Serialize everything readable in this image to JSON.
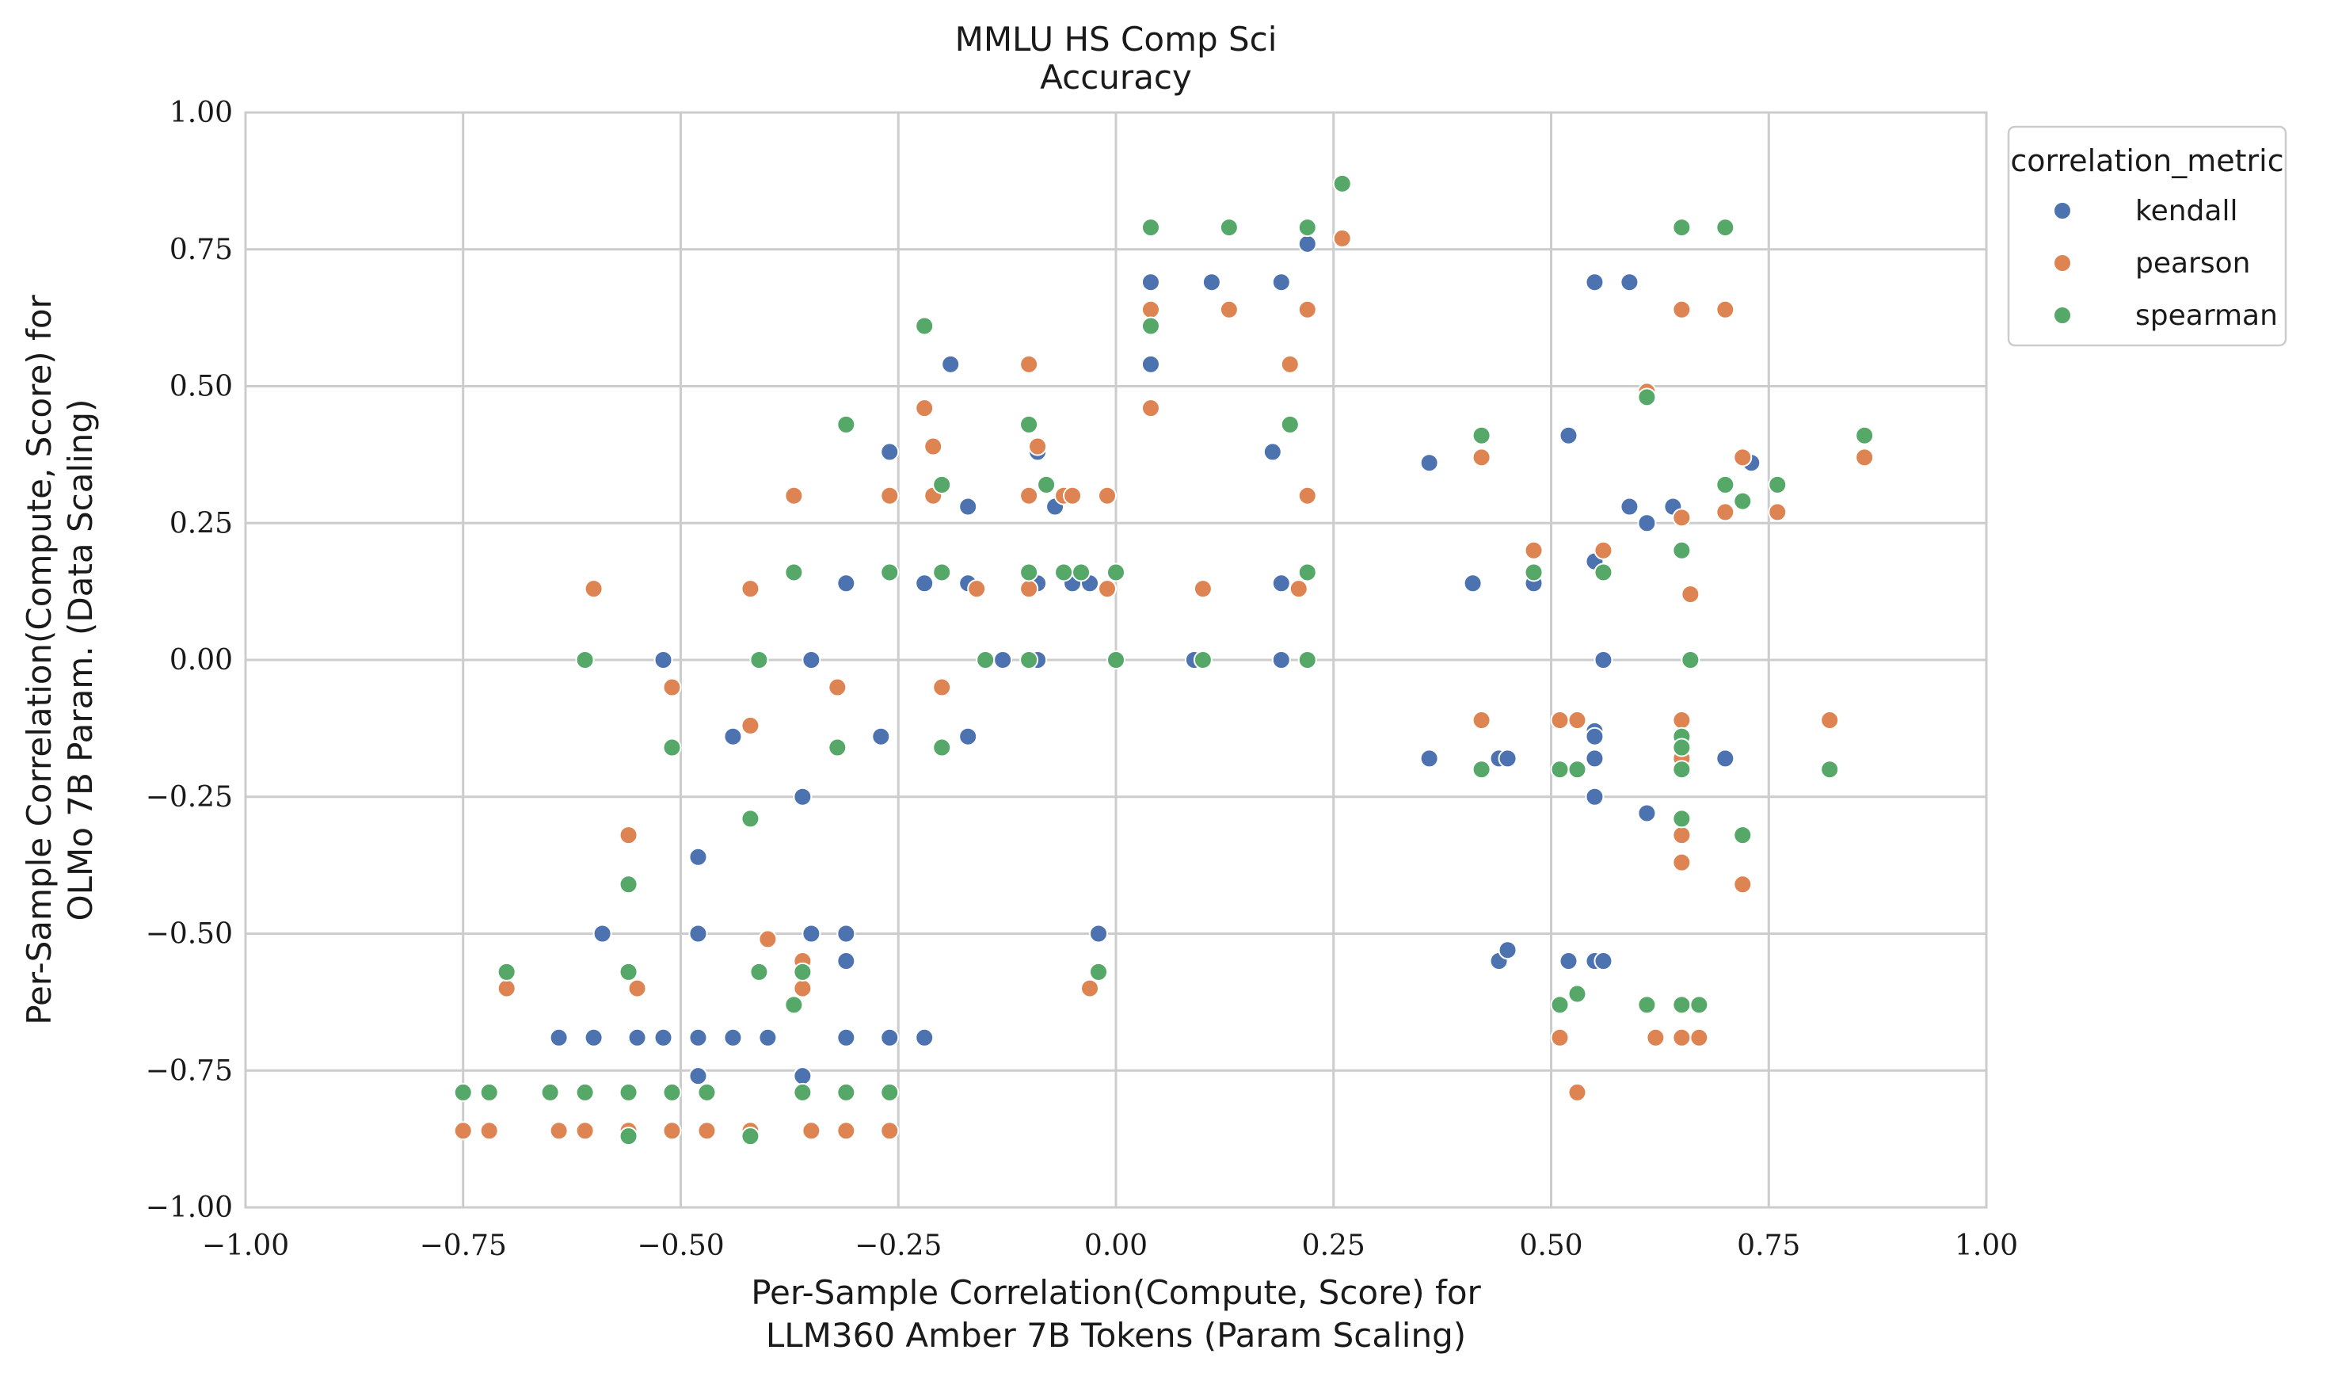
{
  "chart_data": {
    "type": "scatter",
    "title": "MMLU HS Comp Sci",
    "subtitle": "Accuracy",
    "xlabel": [
      "Per-Sample Correlation(Compute, Score) for",
      "LLM360 Amber 7B Tokens (Param Scaling)"
    ],
    "ylabel": [
      "Per-Sample Correlation(Compute, Score) for",
      "OLMo 7B Param. (Data Scaling)"
    ],
    "xlim": [
      -1.0,
      1.0
    ],
    "ylim": [
      -1.0,
      1.0
    ],
    "xticks": [
      "−1.00",
      "−0.75",
      "−0.50",
      "−0.25",
      "0.00",
      "0.25",
      "0.50",
      "0.75",
      "1.00"
    ],
    "yticks": [
      "−1.00",
      "−0.75",
      "−0.50",
      "−0.25",
      "0.00",
      "0.25",
      "0.50",
      "0.75",
      "1.00"
    ],
    "xtick_values": [
      -1.0,
      -0.75,
      -0.5,
      -0.25,
      0.0,
      0.25,
      0.5,
      0.75,
      1.0
    ],
    "ytick_values": [
      -1.0,
      -0.75,
      -0.5,
      -0.25,
      0.0,
      0.25,
      0.5,
      0.75,
      1.0
    ],
    "grid": true,
    "legend": {
      "title": "correlation_metric",
      "placement": "outside-top-right"
    },
    "series": [
      {
        "name": "kendall",
        "color": "#4c72b0",
        "points": [
          [
            -0.64,
            -0.69
          ],
          [
            -0.6,
            -0.69
          ],
          [
            -0.59,
            -0.5
          ],
          [
            -0.55,
            -0.69
          ],
          [
            -0.52,
            -0.69
          ],
          [
            -0.52,
            0.0
          ],
          [
            -0.48,
            -0.69
          ],
          [
            -0.48,
            -0.5
          ],
          [
            -0.48,
            -0.36
          ],
          [
            -0.48,
            -0.76
          ],
          [
            -0.44,
            -0.69
          ],
          [
            -0.44,
            -0.14
          ],
          [
            -0.4,
            -0.69
          ],
          [
            -0.36,
            -0.76
          ],
          [
            -0.36,
            -0.25
          ],
          [
            -0.35,
            -0.5
          ],
          [
            -0.35,
            0.0
          ],
          [
            -0.31,
            -0.55
          ],
          [
            -0.31,
            -0.5
          ],
          [
            -0.31,
            -0.69
          ],
          [
            -0.31,
            0.14
          ],
          [
            -0.27,
            -0.14
          ],
          [
            -0.26,
            -0.69
          ],
          [
            -0.26,
            0.38
          ],
          [
            -0.22,
            -0.69
          ],
          [
            -0.22,
            0.14
          ],
          [
            -0.19,
            0.54
          ],
          [
            -0.17,
            0.28
          ],
          [
            -0.17,
            0.14
          ],
          [
            -0.17,
            -0.14
          ],
          [
            -0.13,
            0.0
          ],
          [
            -0.09,
            0.0
          ],
          [
            -0.09,
            0.38
          ],
          [
            -0.09,
            0.14
          ],
          [
            -0.07,
            0.28
          ],
          [
            -0.05,
            0.14
          ],
          [
            -0.03,
            0.14
          ],
          [
            -0.02,
            -0.5
          ],
          [
            0.04,
            0.69
          ],
          [
            0.04,
            0.54
          ],
          [
            0.11,
            0.69
          ],
          [
            0.09,
            0.0
          ],
          [
            0.18,
            0.38
          ],
          [
            0.19,
            0.69
          ],
          [
            0.19,
            0.14
          ],
          [
            0.19,
            0.0
          ],
          [
            0.22,
            0.76
          ],
          [
            0.36,
            0.36
          ],
          [
            0.36,
            -0.18
          ],
          [
            0.41,
            0.14
          ],
          [
            0.44,
            -0.18
          ],
          [
            0.44,
            -0.55
          ],
          [
            0.45,
            -0.53
          ],
          [
            0.45,
            -0.18
          ],
          [
            0.48,
            0.14
          ],
          [
            0.52,
            0.41
          ],
          [
            0.52,
            -0.55
          ],
          [
            0.55,
            0.69
          ],
          [
            0.55,
            0.18
          ],
          [
            0.55,
            -0.13
          ],
          [
            0.55,
            -0.14
          ],
          [
            0.55,
            -0.18
          ],
          [
            0.55,
            -0.25
          ],
          [
            0.55,
            -0.55
          ],
          [
            0.56,
            0.0
          ],
          [
            0.56,
            -0.55
          ],
          [
            0.59,
            0.69
          ],
          [
            0.59,
            0.28
          ],
          [
            0.61,
            0.25
          ],
          [
            0.61,
            -0.28
          ],
          [
            0.64,
            0.28
          ],
          [
            0.7,
            -0.18
          ],
          [
            0.73,
            0.36
          ]
        ]
      },
      {
        "name": "pearson",
        "color": "#dd8452",
        "points": [
          [
            -0.75,
            -0.86
          ],
          [
            -0.72,
            -0.86
          ],
          [
            -0.7,
            -0.6
          ],
          [
            -0.64,
            -0.86
          ],
          [
            -0.61,
            -0.86
          ],
          [
            -0.6,
            0.13
          ],
          [
            -0.56,
            -0.86
          ],
          [
            -0.56,
            -0.32
          ],
          [
            -0.55,
            -0.6
          ],
          [
            -0.51,
            -0.86
          ],
          [
            -0.51,
            -0.05
          ],
          [
            -0.47,
            -0.86
          ],
          [
            -0.42,
            -0.86
          ],
          [
            -0.42,
            0.13
          ],
          [
            -0.42,
            -0.12
          ],
          [
            -0.4,
            -0.51
          ],
          [
            -0.37,
            0.3
          ],
          [
            -0.36,
            -0.55
          ],
          [
            -0.36,
            -0.6
          ],
          [
            -0.35,
            -0.86
          ],
          [
            -0.31,
            -0.86
          ],
          [
            -0.32,
            -0.05
          ],
          [
            -0.26,
            -0.86
          ],
          [
            -0.26,
            0.3
          ],
          [
            -0.22,
            0.46
          ],
          [
            -0.21,
            0.39
          ],
          [
            -0.21,
            0.3
          ],
          [
            -0.2,
            -0.05
          ],
          [
            -0.16,
            0.13
          ],
          [
            -0.1,
            0.54
          ],
          [
            -0.1,
            0.3
          ],
          [
            -0.1,
            0.13
          ],
          [
            -0.09,
            0.39
          ],
          [
            -0.06,
            0.3
          ],
          [
            -0.05,
            0.3
          ],
          [
            -0.03,
            -0.6
          ],
          [
            -0.01,
            0.3
          ],
          [
            -0.01,
            0.13
          ],
          [
            0.04,
            0.64
          ],
          [
            0.04,
            0.46
          ],
          [
            0.1,
            0.13
          ],
          [
            0.13,
            0.64
          ],
          [
            0.2,
            0.54
          ],
          [
            0.21,
            0.13
          ],
          [
            0.22,
            0.64
          ],
          [
            0.22,
            0.3
          ],
          [
            0.26,
            0.77
          ],
          [
            0.42,
            0.37
          ],
          [
            0.42,
            -0.11
          ],
          [
            0.48,
            0.2
          ],
          [
            0.51,
            -0.11
          ],
          [
            0.51,
            -0.69
          ],
          [
            0.53,
            -0.11
          ],
          [
            0.53,
            -0.79
          ],
          [
            0.56,
            0.2
          ],
          [
            0.61,
            0.49
          ],
          [
            0.62,
            -0.69
          ],
          [
            0.65,
            0.64
          ],
          [
            0.65,
            0.26
          ],
          [
            0.65,
            -0.11
          ],
          [
            0.65,
            -0.18
          ],
          [
            0.65,
            -0.32
          ],
          [
            0.65,
            -0.37
          ],
          [
            0.65,
            -0.69
          ],
          [
            0.66,
            0.12
          ],
          [
            0.67,
            -0.69
          ],
          [
            0.7,
            0.64
          ],
          [
            0.7,
            0.27
          ],
          [
            0.72,
            0.37
          ],
          [
            0.72,
            -0.41
          ],
          [
            0.76,
            0.27
          ],
          [
            0.82,
            -0.11
          ],
          [
            0.86,
            0.37
          ]
        ]
      },
      {
        "name": "spearman",
        "color": "#55a868",
        "points": [
          [
            -0.75,
            -0.79
          ],
          [
            -0.72,
            -0.79
          ],
          [
            -0.7,
            -0.57
          ],
          [
            -0.65,
            -0.79
          ],
          [
            -0.61,
            -0.79
          ],
          [
            -0.61,
            0.0
          ],
          [
            -0.56,
            -0.79
          ],
          [
            -0.56,
            -0.41
          ],
          [
            -0.56,
            -0.57
          ],
          [
            -0.56,
            -0.87
          ],
          [
            -0.51,
            -0.79
          ],
          [
            -0.51,
            -0.16
          ],
          [
            -0.47,
            -0.79
          ],
          [
            -0.42,
            -0.87
          ],
          [
            -0.42,
            -0.29
          ],
          [
            -0.41,
            0.0
          ],
          [
            -0.41,
            -0.57
          ],
          [
            -0.37,
            0.16
          ],
          [
            -0.37,
            -0.63
          ],
          [
            -0.36,
            -0.57
          ],
          [
            -0.36,
            -0.79
          ],
          [
            -0.32,
            -0.16
          ],
          [
            -0.31,
            -0.79
          ],
          [
            -0.31,
            0.43
          ],
          [
            -0.26,
            -0.79
          ],
          [
            -0.26,
            0.16
          ],
          [
            -0.22,
            0.61
          ],
          [
            -0.2,
            0.32
          ],
          [
            -0.2,
            0.16
          ],
          [
            -0.2,
            -0.16
          ],
          [
            -0.15,
            0.0
          ],
          [
            -0.1,
            0.43
          ],
          [
            -0.1,
            0.16
          ],
          [
            -0.1,
            0.0
          ],
          [
            -0.08,
            0.32
          ],
          [
            -0.06,
            0.16
          ],
          [
            -0.04,
            0.16
          ],
          [
            -0.02,
            -0.57
          ],
          [
            0.0,
            0.16
          ],
          [
            0.0,
            0.0
          ],
          [
            0.04,
            0.79
          ],
          [
            0.04,
            0.61
          ],
          [
            0.1,
            0.0
          ],
          [
            0.13,
            0.79
          ],
          [
            0.2,
            0.43
          ],
          [
            0.22,
            0.79
          ],
          [
            0.22,
            0.16
          ],
          [
            0.22,
            0.0
          ],
          [
            0.26,
            0.87
          ],
          [
            0.42,
            0.41
          ],
          [
            0.42,
            -0.2
          ],
          [
            0.48,
            0.16
          ],
          [
            0.51,
            -0.2
          ],
          [
            0.51,
            -0.63
          ],
          [
            0.53,
            -0.2
          ],
          [
            0.53,
            -0.61
          ],
          [
            0.56,
            0.16
          ],
          [
            0.61,
            0.48
          ],
          [
            0.61,
            -0.63
          ],
          [
            0.65,
            0.79
          ],
          [
            0.65,
            0.2
          ],
          [
            0.65,
            -0.14
          ],
          [
            0.65,
            -0.16
          ],
          [
            0.65,
            -0.2
          ],
          [
            0.65,
            -0.29
          ],
          [
            0.65,
            -0.63
          ],
          [
            0.66,
            0.0
          ],
          [
            0.67,
            -0.63
          ],
          [
            0.7,
            0.79
          ],
          [
            0.7,
            0.32
          ],
          [
            0.72,
            0.29
          ],
          [
            0.72,
            -0.32
          ],
          [
            0.76,
            0.32
          ],
          [
            0.82,
            -0.2
          ],
          [
            0.86,
            0.41
          ]
        ]
      }
    ]
  }
}
